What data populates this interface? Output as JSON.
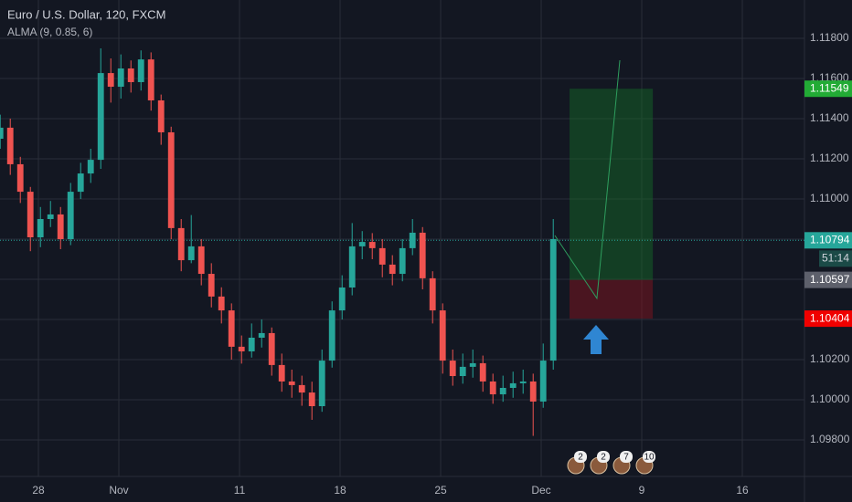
{
  "chart_data": {
    "type": "candlestick",
    "title": "Euro / U.S. Dollar, 120, FXCM",
    "subtitle": "ALMA (9, 0.85, 6)",
    "xlim": [
      -1.91,
      38.09
    ],
    "ylim": [
      1.09618,
      1.11991
    ],
    "xticks": [
      {
        "value": 0,
        "label": "28"
      },
      {
        "value": 4,
        "label": "Nov"
      },
      {
        "value": 10,
        "label": "11"
      },
      {
        "value": 15,
        "label": "18"
      },
      {
        "value": 20,
        "label": "25"
      },
      {
        "value": 25,
        "label": "Dec"
      },
      {
        "value": 30,
        "label": "9"
      },
      {
        "value": 35,
        "label": "16"
      }
    ],
    "yticks": [
      {
        "value": 1.098,
        "label": "1.09800"
      },
      {
        "value": 1.1,
        "label": "1.10000"
      },
      {
        "value": 1.102,
        "label": "1.10200"
      },
      {
        "value": 1.104,
        "label": "1.10400"
      },
      {
        "value": 1.106,
        "label": "1.10600"
      },
      {
        "value": 1.108,
        "label": "1.10800"
      },
      {
        "value": 1.11,
        "label": "1.11000"
      },
      {
        "value": 1.112,
        "label": "1.11200"
      },
      {
        "value": 1.114,
        "label": "1.11400"
      },
      {
        "value": 1.116,
        "label": "1.11600"
      },
      {
        "value": 1.118,
        "label": "1.11800"
      }
    ],
    "grid": true,
    "up_color": "#26a69a",
    "down_color": "#ef5350",
    "x": [
      -1.9,
      -1.4,
      -0.9,
      -0.4,
      0.1,
      0.6,
      1.1,
      1.6,
      2.1,
      2.6,
      3.1,
      3.6,
      4.1,
      4.6,
      5.1,
      5.6,
      6.1,
      6.6,
      7.1,
      7.6,
      8.1,
      8.6,
      9.1,
      9.6,
      10.1,
      10.6,
      11.1,
      11.6,
      12.1,
      12.6,
      13.1,
      13.6,
      14.1,
      14.6,
      15.1,
      15.6,
      16.1,
      16.6,
      17.1,
      17.6,
      18.1,
      18.6,
      19.1,
      19.6,
      20.1,
      20.6,
      21.1,
      21.6,
      22.1,
      22.6,
      23.1,
      23.6,
      24.1,
      24.6,
      25.1,
      25.6
    ],
    "open": [
      1.113,
      1.11355,
      1.11173,
      1.11036,
      1.10809,
      1.109,
      1.10923,
      1.108,
      1.11036,
      1.11127,
      1.11195,
      1.11627,
      1.11559,
      1.1165,
      1.11582,
      1.11695,
      1.11491,
      1.11332,
      1.10855,
      1.10695,
      1.10764,
      1.10627,
      1.10514,
      1.10445,
      1.10264,
      1.10241,
      1.10309,
      1.10332,
      1.10173,
      1.10091,
      1.10073,
      1.10036,
      1.09968,
      1.10195,
      1.10445,
      1.10559,
      1.10764,
      1.10786,
      1.10755,
      1.10673,
      1.10627,
      1.10755,
      1.10832,
      1.10605,
      1.10445,
      1.10195,
      1.10118,
      1.10164,
      1.10182,
      1.10091,
      1.10027,
      1.10059,
      1.10082,
      1.10091,
      1.09991,
      1.10195
    ],
    "high": [
      1.1142,
      1.114,
      1.1121,
      1.1106,
      1.1096,
      1.1099,
      1.1096,
      1.1108,
      1.1118,
      1.1125,
      1.1175,
      1.117,
      1.1172,
      1.1169,
      1.1174,
      1.1173,
      1.1152,
      1.1136,
      1.109,
      1.1092,
      1.108,
      1.1068,
      1.1056,
      1.1048,
      1.1032,
      1.1038,
      1.104,
      1.1036,
      1.1023,
      1.1015,
      1.1012,
      1.1009,
      1.1025,
      1.1049,
      1.1062,
      1.1088,
      1.1084,
      1.1083,
      1.108,
      1.1072,
      1.108,
      1.109,
      1.1086,
      1.1064,
      1.1048,
      1.1025,
      1.1023,
      1.1025,
      1.1022,
      1.1013,
      1.1012,
      1.1014,
      1.1015,
      1.1013,
      1.1028,
      1.109
    ],
    "low": [
      1.1125,
      1.1112,
      1.1098,
      1.1074,
      1.1076,
      1.1086,
      1.1075,
      1.1077,
      1.11,
      1.1108,
      1.1115,
      1.1148,
      1.115,
      1.1153,
      1.1154,
      1.1144,
      1.1127,
      1.108,
      1.1064,
      1.1068,
      1.1057,
      1.1046,
      1.1038,
      1.102,
      1.1018,
      1.1021,
      1.1026,
      1.1012,
      1.1004,
      1.1001,
      1.0997,
      1.099,
      1.0994,
      1.1016,
      1.104,
      1.1052,
      1.107,
      1.107,
      1.1061,
      1.1057,
      1.1059,
      1.1072,
      1.1055,
      1.1038,
      1.1013,
      1.1007,
      1.1008,
      1.1011,
      1.1004,
      1.0998,
      1.0999,
      1.1001,
      1.1003,
      1.0982,
      1.0996,
      1.1015
    ],
    "close": [
      1.11355,
      1.11173,
      1.11036,
      1.10809,
      1.109,
      1.10923,
      1.108,
      1.11036,
      1.11127,
      1.11195,
      1.11627,
      1.11559,
      1.1165,
      1.11582,
      1.11695,
      1.11491,
      1.11332,
      1.10855,
      1.10695,
      1.10764,
      1.10627,
      1.10514,
      1.10445,
      1.10264,
      1.10241,
      1.10309,
      1.10332,
      1.10173,
      1.10091,
      1.10073,
      1.10036,
      1.09968,
      1.10195,
      1.10445,
      1.10559,
      1.10764,
      1.10786,
      1.10755,
      1.10673,
      1.10627,
      1.10755,
      1.10832,
      1.10605,
      1.10445,
      1.10195,
      1.10118,
      1.10164,
      1.10182,
      1.10091,
      1.10027,
      1.10059,
      1.10082,
      1.10091,
      1.09991,
      1.10195,
      1.108
    ],
    "current_price": 1.10794,
    "current_color": "#26a69a",
    "countdown": "51:14",
    "position": {
      "x": [
        26.41,
        30.55
      ],
      "target": 1.11549,
      "entry": 1.10597,
      "stop": 1.10404,
      "target_color": "#22ab35",
      "entry_color": "#5d606b",
      "stop_color": "#f00000"
    },
    "projection": {
      "x": [
        25.68,
        27.77,
        28.91
      ],
      "y": [
        1.10818,
        1.10505,
        1.11691
      ],
      "color": "#2e9e5e"
    },
    "events": [
      "2",
      "2",
      "7",
      "10"
    ]
  }
}
